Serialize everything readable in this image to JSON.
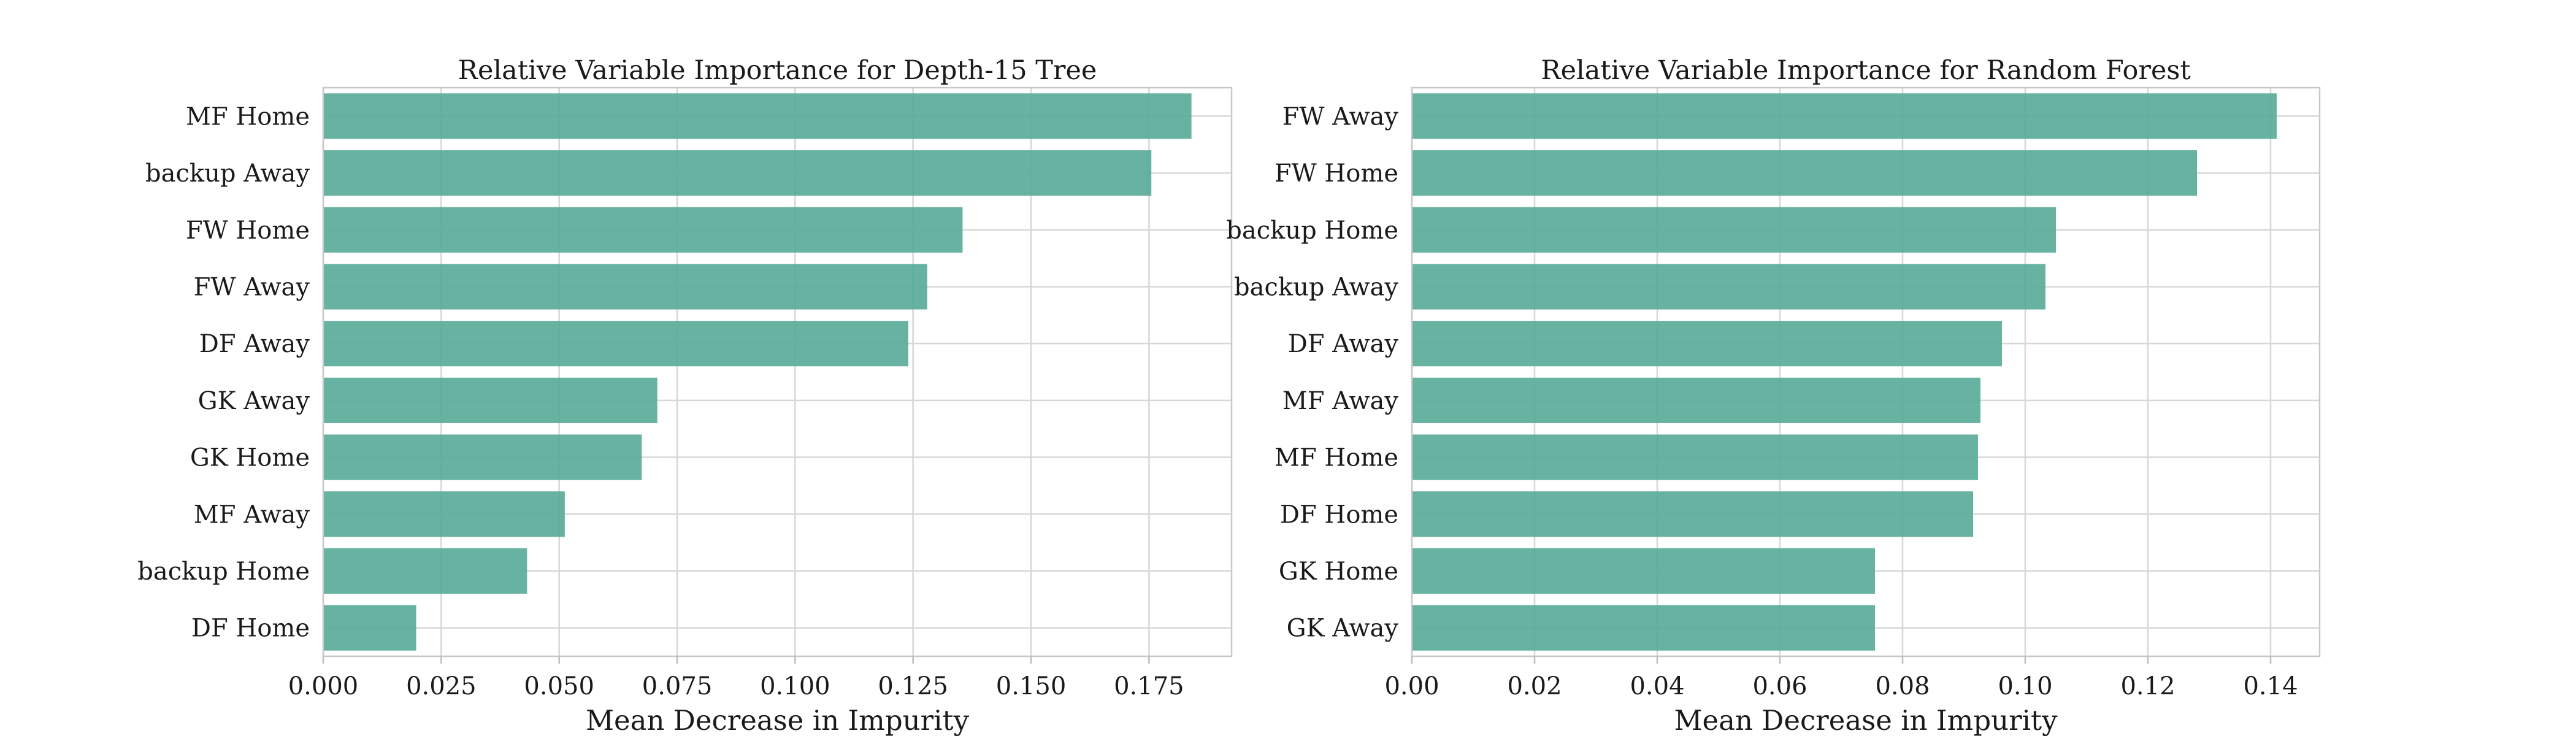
{
  "chart_data": [
    {
      "type": "bar",
      "orientation": "horizontal",
      "title": "Relative Variable Importance for Depth-15 Tree",
      "xlabel": "Mean Decrease in Impurity",
      "ylabel": "",
      "categories": [
        "MF Home",
        "backup Away",
        "FW Home",
        "FW Away",
        "DF Away",
        "GK Away",
        "GK Home",
        "MF Away",
        "backup Home",
        "DF Home"
      ],
      "values": [
        0.184,
        0.1755,
        0.1355,
        0.128,
        0.124,
        0.0708,
        0.0675,
        0.0512,
        0.0432,
        0.0197
      ],
      "xlim": [
        0,
        0.1925
      ],
      "xticks": [
        0,
        0.025,
        0.05,
        0.075,
        0.1,
        0.125,
        0.15,
        0.175
      ],
      "xtick_labels": [
        "0.000",
        "0.025",
        "0.050",
        "0.075",
        "0.100",
        "0.125",
        "0.150",
        "0.175"
      ],
      "grid": true,
      "bar_color": "#5aab99"
    },
    {
      "type": "bar",
      "orientation": "horizontal",
      "title": "Relative Variable Importance for Random Forest",
      "xlabel": "Mean Decrease in Impurity",
      "ylabel": "",
      "categories": [
        "FW Away",
        "FW Home",
        "backup Home",
        "backup Away",
        "DF Away",
        "MF Away",
        "MF Home",
        "DF Home",
        "GK Home",
        "GK Away"
      ],
      "values": [
        0.141,
        0.128,
        0.105,
        0.1033,
        0.0962,
        0.0927,
        0.0923,
        0.0915,
        0.0755,
        0.0755
      ],
      "xlim": [
        0,
        0.148
      ],
      "xticks": [
        0,
        0.02,
        0.04,
        0.06,
        0.08,
        0.1,
        0.12,
        0.14
      ],
      "xtick_labels": [
        "0.00",
        "0.02",
        "0.04",
        "0.06",
        "0.08",
        "0.10",
        "0.12",
        "0.14"
      ],
      "grid": true,
      "bar_color": "#5aab99"
    }
  ]
}
